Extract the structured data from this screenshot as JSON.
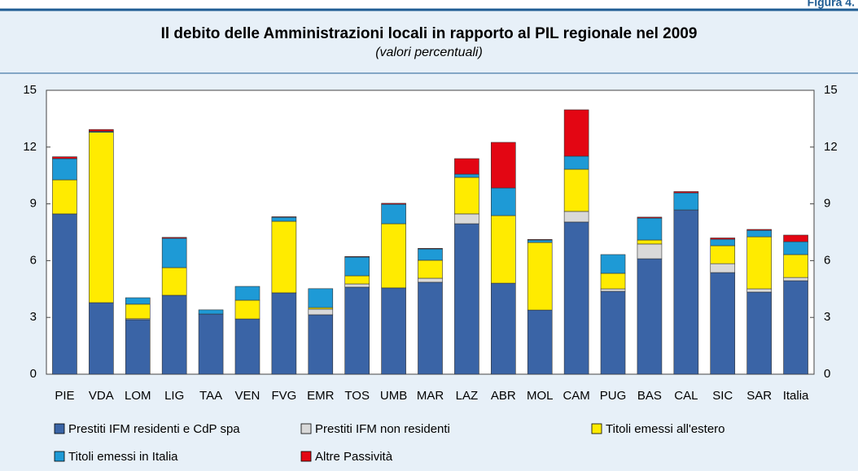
{
  "figure_label": "Figura 4.",
  "chart_data": {
    "type": "stacked_bar",
    "title": "Il debito delle Amministrazioni locali in rapporto al PIL regionale nel 2009",
    "subtitle": "(valori percentuali)",
    "categories": [
      "PIE",
      "VDA",
      "LOM",
      "LIG",
      "TAA",
      "VEN",
      "FVG",
      "EMR",
      "TOS",
      "UMB",
      "MAR",
      "LAZ",
      "ABR",
      "MOL",
      "CAM",
      "PUG",
      "BAS",
      "CAL",
      "SIC",
      "SAR",
      "Italia"
    ],
    "series": [
      {
        "name": "Prestiti IFM residenti e CdP spa",
        "color": "#3a64a6",
        "values": [
          8.47,
          3.78,
          2.88,
          4.17,
          3.18,
          2.92,
          4.3,
          3.14,
          4.6,
          4.56,
          4.86,
          7.95,
          4.81,
          3.39,
          8.04,
          4.38,
          6.1,
          8.68,
          5.37,
          4.34,
          4.94
        ]
      },
      {
        "name": "Prestiti IFM non residenti",
        "color": "#d9d9d9",
        "values": [
          0,
          0,
          0.05,
          0,
          0,
          0,
          0,
          0.3,
          0.17,
          0,
          0.21,
          0.52,
          0,
          0,
          0.56,
          0.13,
          0.78,
          0,
          0.47,
          0.17,
          0.17
        ]
      },
      {
        "name": "Titoli emessi all'estero",
        "color": "#ffeb00",
        "values": [
          1.8,
          9.0,
          0.77,
          1.46,
          0,
          0.99,
          3.78,
          0.08,
          0.43,
          3.39,
          0.95,
          1.93,
          3.57,
          3.57,
          2.23,
          0.82,
          0.21,
          0,
          0.95,
          2.75,
          1.21
        ]
      },
      {
        "name": "Titoli emessi in Italia",
        "color": "#1e9ad6",
        "values": [
          1.12,
          0.05,
          0.34,
          1.55,
          0.22,
          0.73,
          0.21,
          1.0,
          0.99,
          1.03,
          0.6,
          0.17,
          1.46,
          0.13,
          0.69,
          0.99,
          1.16,
          0.9,
          0.34,
          0.34,
          0.68
        ]
      },
      {
        "name": "Altre Passività",
        "color": "#e30613",
        "values": [
          0.1,
          0.1,
          0,
          0.05,
          0,
          0,
          0.03,
          0,
          0.03,
          0.05,
          0.03,
          0.82,
          2.41,
          0.03,
          2.45,
          0,
          0.05,
          0.07,
          0.07,
          0.05,
          0.35
        ]
      }
    ],
    "ylim": [
      0,
      15
    ],
    "yticks": [
      0,
      3,
      6,
      9,
      12,
      15
    ],
    "y2lim": [
      0,
      15
    ],
    "y2ticks": [
      0,
      3,
      6,
      9,
      12,
      15
    ]
  }
}
